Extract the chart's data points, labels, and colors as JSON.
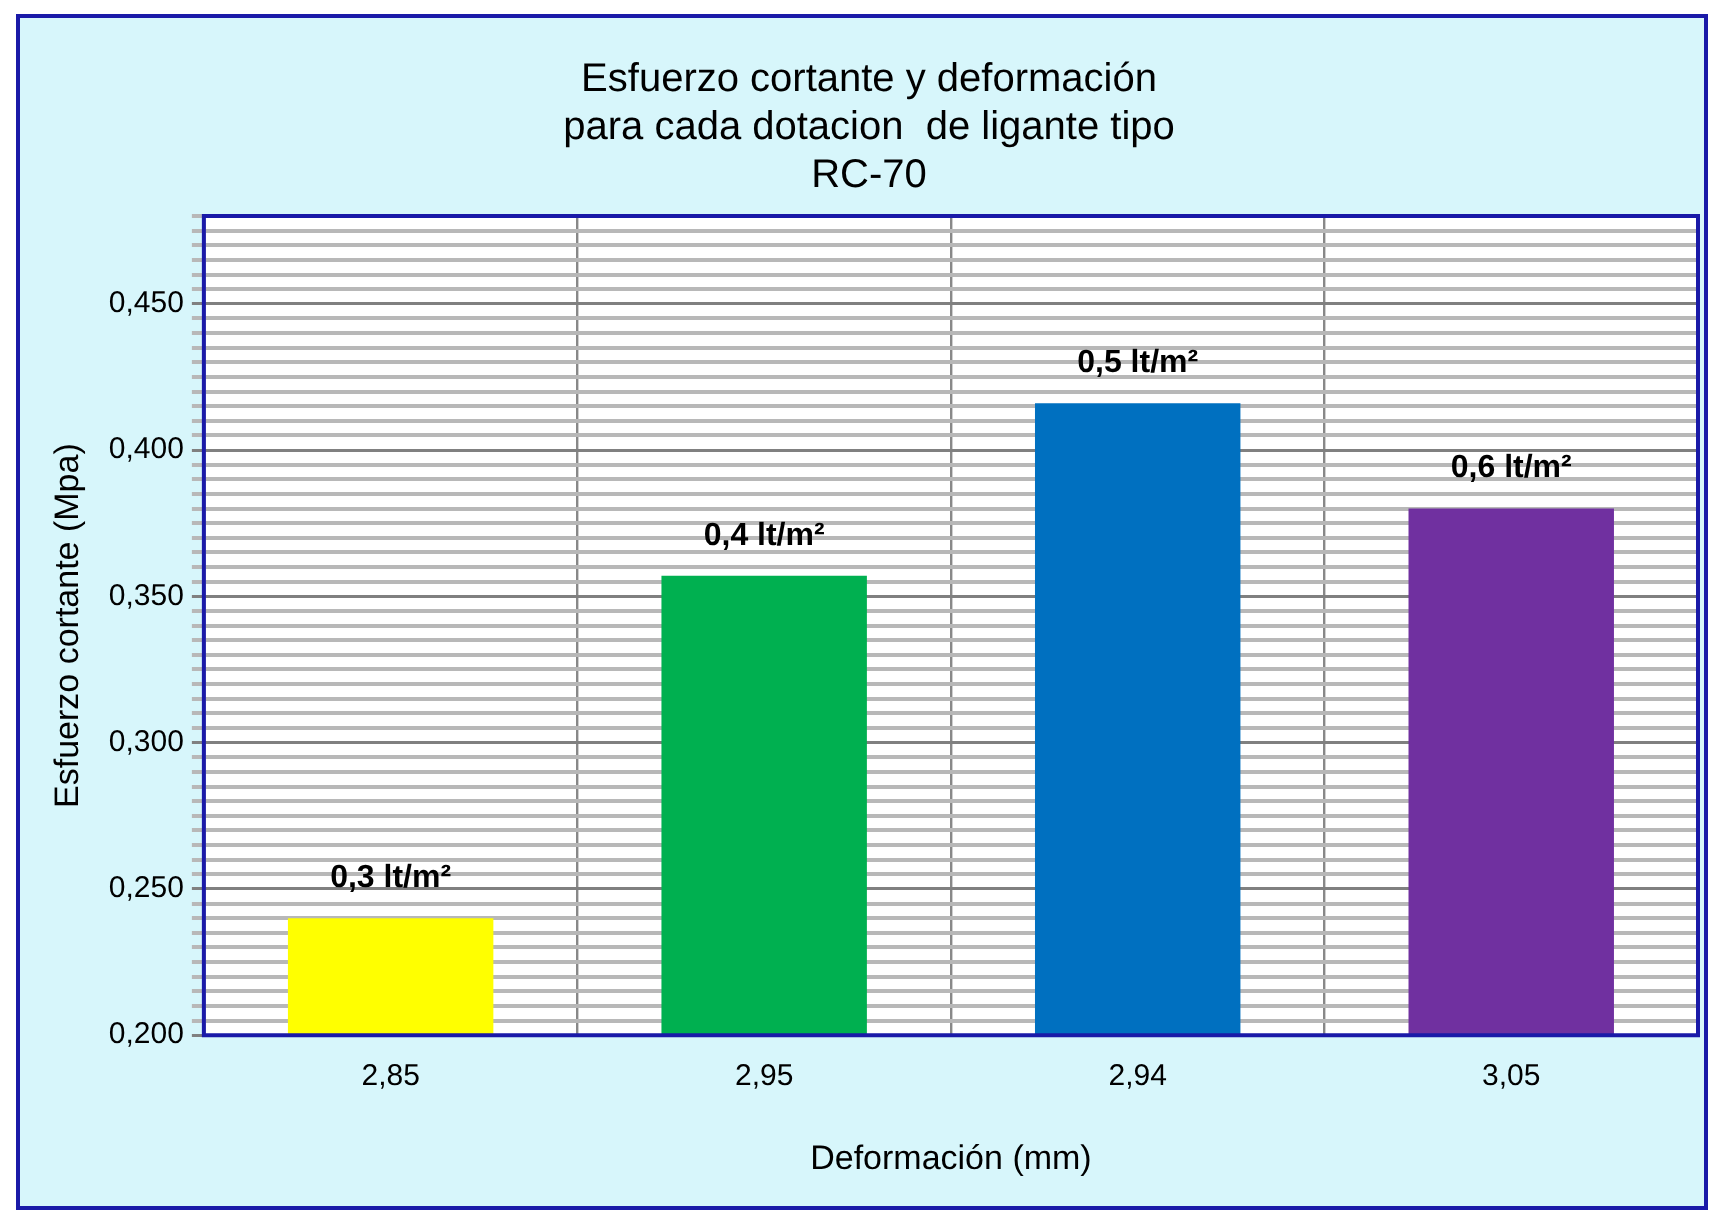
{
  "chart_data": {
    "type": "bar",
    "title": "Esfuerzo cortante y deformación\npara cada dotacion  de ligante tipo\nRC-70",
    "xlabel": "Deformación (mm)",
    "ylabel": "Esfuerzo cortante (Mpa)",
    "categories": [
      "2,85",
      "2,95",
      "2,94",
      "3,05"
    ],
    "values": [
      0.24,
      0.357,
      0.416,
      0.38
    ],
    "colors": [
      "#ffff00",
      "#00b050",
      "#0070c0",
      "#7030a0"
    ],
    "annotations": [
      {
        "text": "0,3 lt/m²",
        "x": "2,85",
        "y": 0.24
      },
      {
        "text": "0,4 lt/m²",
        "x": "2,95",
        "y": 0.357
      },
      {
        "text": "0,5 lt/m²",
        "x": "2,94",
        "y": 0.416
      },
      {
        "text": "0,6 lt/m²",
        "x": "3,05",
        "y": 0.38
      }
    ],
    "ylim": [
      0.2,
      0.48
    ],
    "yticks": [
      {
        "value": 0.2,
        "label": "0,200"
      },
      {
        "value": 0.205,
        "label": null
      },
      {
        "value": 0.21,
        "label": null
      },
      {
        "value": 0.215,
        "label": null
      },
      {
        "value": 0.22,
        "label": null
      },
      {
        "value": 0.225,
        "label": null
      },
      {
        "value": 0.23,
        "label": null
      },
      {
        "value": 0.235,
        "label": null
      },
      {
        "value": 0.24,
        "label": null
      },
      {
        "value": 0.245,
        "label": null
      },
      {
        "value": 0.25,
        "label": "0,250"
      },
      {
        "value": 0.255,
        "label": null
      },
      {
        "value": 0.26,
        "label": null
      },
      {
        "value": 0.265,
        "label": null
      },
      {
        "value": 0.27,
        "label": null
      },
      {
        "value": 0.275,
        "label": null
      },
      {
        "value": 0.28,
        "label": null
      },
      {
        "value": 0.285,
        "label": null
      },
      {
        "value": 0.29,
        "label": null
      },
      {
        "value": 0.295,
        "label": null
      },
      {
        "value": 0.3,
        "label": "0,300"
      },
      {
        "value": 0.305,
        "label": null
      },
      {
        "value": 0.31,
        "label": null
      },
      {
        "value": 0.315,
        "label": null
      },
      {
        "value": 0.32,
        "label": null
      },
      {
        "value": 0.325,
        "label": null
      },
      {
        "value": 0.33,
        "label": null
      },
      {
        "value": 0.335,
        "label": null
      },
      {
        "value": 0.34,
        "label": null
      },
      {
        "value": 0.345,
        "label": null
      },
      {
        "value": 0.35,
        "label": "0,350"
      },
      {
        "value": 0.355,
        "label": null
      },
      {
        "value": 0.36,
        "label": null
      },
      {
        "value": 0.365,
        "label": null
      },
      {
        "value": 0.37,
        "label": null
      },
      {
        "value": 0.375,
        "label": null
      },
      {
        "value": 0.38,
        "label": null
      },
      {
        "value": 0.385,
        "label": null
      },
      {
        "value": 0.39,
        "label": null
      },
      {
        "value": 0.395,
        "label": null
      },
      {
        "value": 0.4,
        "label": "0,400"
      },
      {
        "value": 0.405,
        "label": null
      },
      {
        "value": 0.41,
        "label": null
      },
      {
        "value": 0.415,
        "label": null
      },
      {
        "value": 0.42,
        "label": null
      },
      {
        "value": 0.425,
        "label": null
      },
      {
        "value": 0.43,
        "label": null
      },
      {
        "value": 0.435,
        "label": null
      },
      {
        "value": 0.44,
        "label": null
      },
      {
        "value": 0.445,
        "label": null
      },
      {
        "value": 0.45,
        "label": "0,450"
      },
      {
        "value": 0.455,
        "label": null
      },
      {
        "value": 0.46,
        "label": null
      },
      {
        "value": 0.465,
        "label": null
      },
      {
        "value": 0.47,
        "label": null
      },
      {
        "value": 0.475,
        "label": null
      },
      {
        "value": 0.48,
        "label": null
      }
    ],
    "grid": true
  }
}
